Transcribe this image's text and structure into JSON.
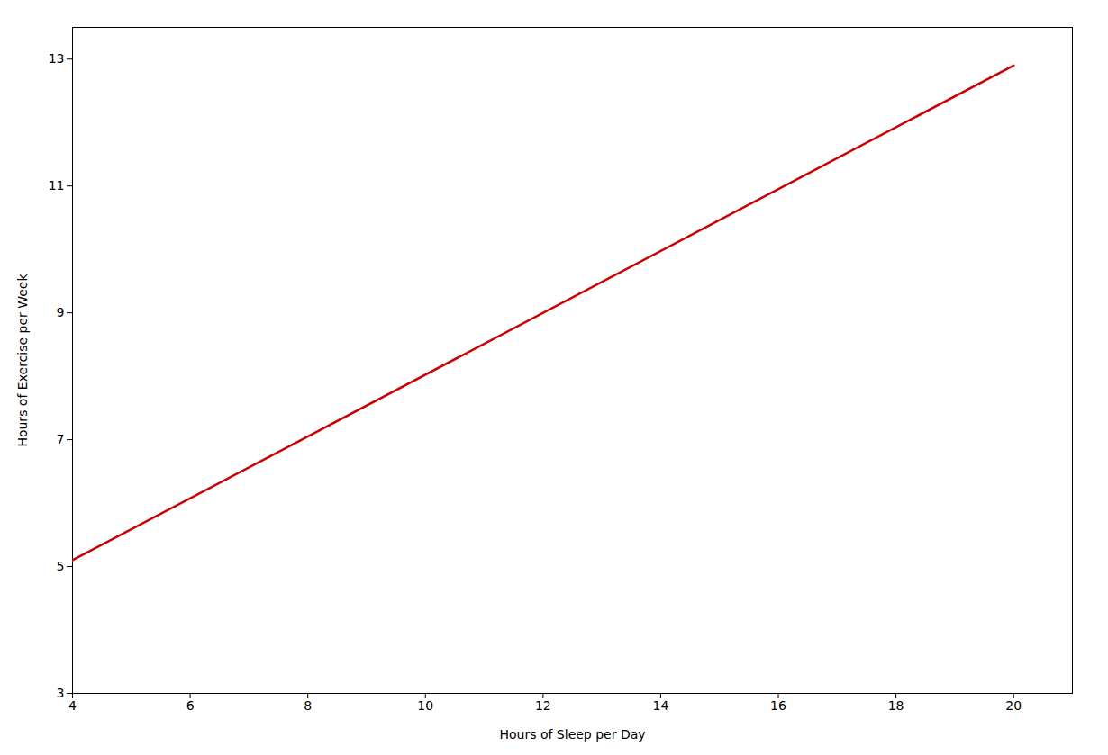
{
  "chart_data": {
    "type": "line",
    "xlabel": "Hours of Sleep per Day",
    "ylabel": "Hours of Exercise per Week",
    "x": [
      4,
      20
    ],
    "values": [
      5.1,
      12.9
    ],
    "color": "#cc0000",
    "xlim": [
      4,
      21
    ],
    "ylim": [
      3,
      13.5
    ],
    "xticks": [
      4,
      6,
      8,
      10,
      12,
      14,
      16,
      18,
      20
    ],
    "yticks": [
      3,
      5,
      7,
      9,
      11,
      13
    ],
    "grid": false
  }
}
